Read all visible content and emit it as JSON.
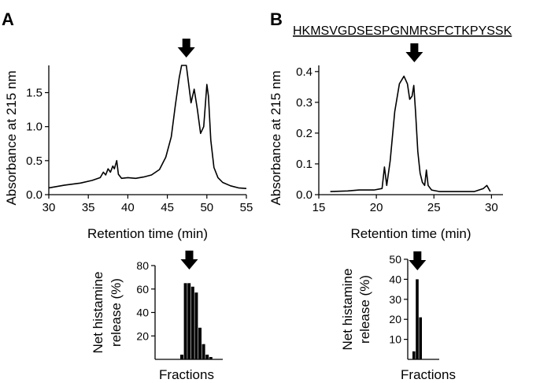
{
  "panels": [
    {
      "letter": "A",
      "peptide": "",
      "chart_data": {
        "type": "line",
        "title": "",
        "xlabel": "Retention time (min)",
        "ylabel": "Absorbance at 215 nm",
        "xlim": [
          30,
          55
        ],
        "ylim": [
          0,
          1.9
        ],
        "xticks": [
          30,
          35,
          40,
          45,
          50,
          55
        ],
        "yticks": [
          0.0,
          0.5,
          1.0,
          1.5
        ],
        "ytick_labels": [
          "0.0",
          "0.5",
          "1.0",
          "1.5"
        ],
        "arrow_x": 47.4,
        "x": [
          30.0,
          32.0,
          34.0,
          35.5,
          36.5,
          36.9,
          37.2,
          37.5,
          37.8,
          38.1,
          38.3,
          38.6,
          38.8,
          39.2,
          40.0,
          41.0,
          42.0,
          43.0,
          44.0,
          44.8,
          45.5,
          46.0,
          46.5,
          46.8,
          47.0,
          47.4,
          48.0,
          48.4,
          48.8,
          49.2,
          49.6,
          50.0,
          50.2,
          50.5,
          50.9,
          51.4,
          52.0,
          53.0,
          54.0,
          55.0
        ],
        "y": [
          0.1,
          0.14,
          0.17,
          0.21,
          0.25,
          0.33,
          0.29,
          0.38,
          0.33,
          0.42,
          0.38,
          0.5,
          0.3,
          0.24,
          0.25,
          0.24,
          0.26,
          0.29,
          0.37,
          0.55,
          0.85,
          1.3,
          1.72,
          1.9,
          1.9,
          1.9,
          1.35,
          1.55,
          1.25,
          0.9,
          1.0,
          1.62,
          1.45,
          0.8,
          0.4,
          0.25,
          0.18,
          0.13,
          0.1,
          0.09
        ]
      },
      "bar_data": {
        "type": "bar",
        "xlabel": "Fractions",
        "ylabel": "Net histamine release (%)",
        "ylabel_lines": [
          "Net histamine",
          "release (%)"
        ],
        "ylim": [
          0,
          80
        ],
        "yticks": [
          20,
          40,
          60,
          80
        ],
        "ytick_labels": [
          "20",
          "40",
          "60",
          "80"
        ],
        "arrow_category": 2,
        "values": [
          4,
          65,
          65,
          62,
          57,
          27,
          13,
          4,
          2
        ]
      }
    },
    {
      "letter": "B",
      "peptide": "HKMSVGDSESPGNMRSFCTKPYSSK",
      "chart_data": {
        "type": "line",
        "title": "",
        "xlabel": "Retention time (min)",
        "ylabel": "Absorbance at 215 nm",
        "xlim": [
          15,
          31
        ],
        "ylim": [
          0,
          0.42
        ],
        "xticks": [
          15,
          20,
          25,
          30
        ],
        "yticks": [
          0.0,
          0.1,
          0.2,
          0.3,
          0.4
        ],
        "ytick_labels": [
          "0.0",
          "0.1",
          "0.2",
          "0.3",
          "0.4"
        ],
        "arrow_x": 23.3,
        "x": [
          16.0,
          17.5,
          18.5,
          19.8,
          20.5,
          20.7,
          20.9,
          21.2,
          21.6,
          22.0,
          22.4,
          22.7,
          22.9,
          23.1,
          23.25,
          23.4,
          23.6,
          23.8,
          24.0,
          24.2,
          24.35,
          24.5,
          24.8,
          25.5,
          27.0,
          28.5,
          29.3,
          29.6,
          29.9
        ],
        "y": [
          0.01,
          0.012,
          0.015,
          0.015,
          0.02,
          0.09,
          0.03,
          0.11,
          0.27,
          0.36,
          0.385,
          0.36,
          0.31,
          0.32,
          0.355,
          0.27,
          0.14,
          0.07,
          0.04,
          0.03,
          0.08,
          0.03,
          0.015,
          0.01,
          0.01,
          0.01,
          0.02,
          0.03,
          0.01
        ]
      },
      "bar_data": {
        "type": "bar",
        "xlabel": "Fractions",
        "ylabel": "Net histamine release (%)",
        "ylabel_lines": [
          "Net histamine",
          "release (%)"
        ],
        "ylim": [
          0,
          50
        ],
        "yticks": [
          10,
          20,
          30,
          40,
          50
        ],
        "ytick_labels": [
          "10",
          "20",
          "30",
          "40",
          "50"
        ],
        "arrow_category": 1,
        "values": [
          4,
          40,
          21
        ]
      }
    }
  ]
}
